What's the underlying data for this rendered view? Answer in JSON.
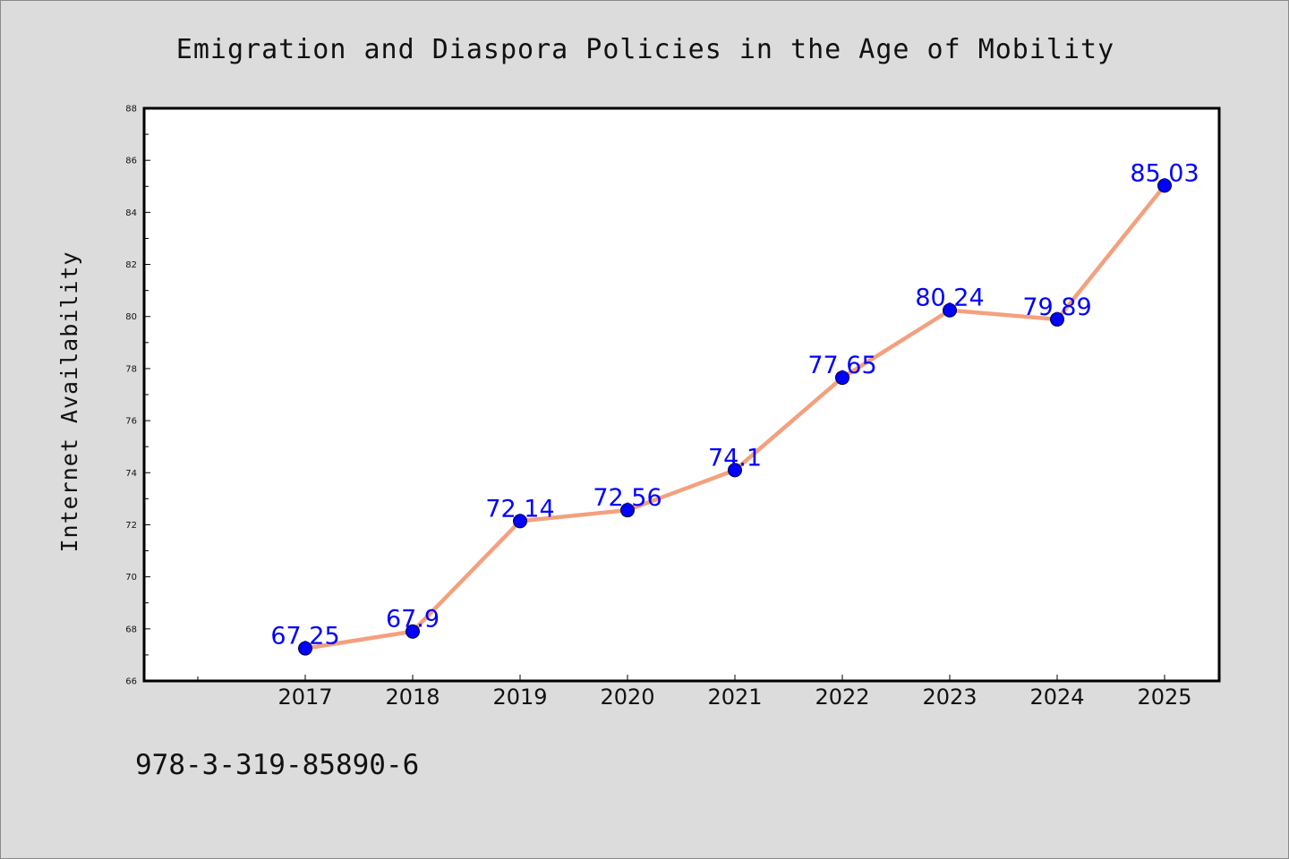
{
  "chart_data": {
    "type": "line",
    "title": "Emigration and Diaspora Policies in the Age of Mobility",
    "xlabel": "",
    "ylabel": "Internet Availability",
    "categories": [
      "2017",
      "2018",
      "2019",
      "2020",
      "2021",
      "2022",
      "2023",
      "2024",
      "2025"
    ],
    "series": [
      {
        "values": [
          67.25,
          67.9,
          72.14,
          72.56,
          74.1,
          77.65,
          80.24,
          79.89,
          85.03
        ],
        "labels": [
          "67.25",
          "67.9",
          "72.14",
          "72.56",
          "74.1",
          "77.65",
          "80.24",
          "79.89",
          "85.03"
        ],
        "line_color": "#f4a07e",
        "marker_color": "#0000ff"
      }
    ],
    "ylim": [
      66,
      88
    ],
    "yticks": [
      "66",
      "68",
      "70",
      "72",
      "74",
      "76",
      "78",
      "80",
      "82",
      "84",
      "86",
      "88"
    ],
    "grid": false,
    "legend": "none"
  },
  "footer": {
    "isbn": "978-3-319-85890-6"
  }
}
